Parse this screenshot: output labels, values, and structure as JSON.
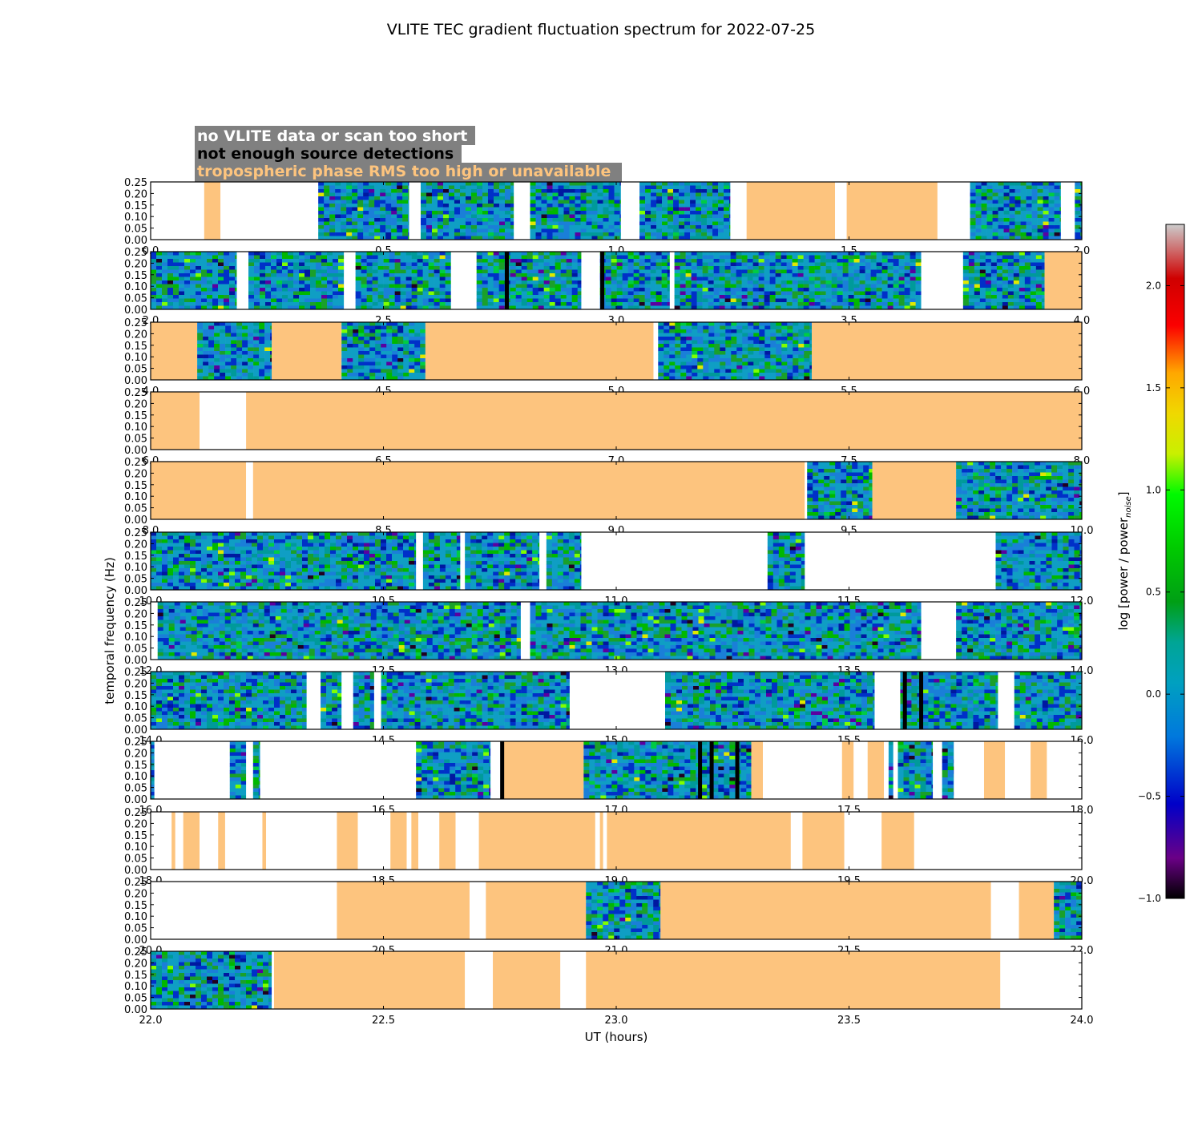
{
  "chart_data": {
    "type": "heatmap",
    "title": "VLITE TEC gradient fluctuation spectrum for 2022-07-25",
    "xlabel": "UT (hours)",
    "ylabel": "temporal frequency (Hz)",
    "colorbar": {
      "label": "log [power / power",
      "label_sub": "noise",
      "label_end": "]",
      "range": [
        -1.0,
        2.3
      ],
      "ticks": [
        "−1.0",
        "−0.5",
        "0.0",
        "0.5",
        "1.0",
        "1.5",
        "2.0"
      ],
      "tick_values": [
        -1.0,
        -0.5,
        0.0,
        0.5,
        1.0,
        1.5,
        2.0
      ],
      "colormap": "nipy_spectral"
    },
    "legend": {
      "placement": "top-left",
      "items": [
        {
          "label": "no VLITE data or scan too short",
          "text_color": "#ffffff",
          "fill": "#ffffff"
        },
        {
          "label": "not enough source detections",
          "text_color": "#000000",
          "fill": "#000000"
        },
        {
          "label": "tropospheric phase RMS too high or unavailable",
          "text_color": "#fdc47e",
          "fill": "#fdc47e"
        }
      ],
      "box_color": "#808080"
    },
    "y_ticks": [
      "0.00",
      "0.05",
      "0.10",
      "0.15",
      "0.20",
      "0.25"
    ],
    "y_tick_values": [
      0.0,
      0.05,
      0.1,
      0.15,
      0.2,
      0.25
    ],
    "ylim": [
      0,
      0.25
    ],
    "category_colors": {
      "none": "#ffffff",
      "detect": "#000000",
      "tropo": "#fdc47e"
    },
    "panels": [
      {
        "xlim": [
          0.0,
          2.0
        ],
        "x_ticks": [
          "0.0",
          "0.5",
          "1.0",
          "1.5",
          "2.0"
        ],
        "segments": [
          [
            "none",
            0.0,
            0.115
          ],
          [
            "tropo",
            0.115,
            0.15
          ],
          [
            "none",
            0.15,
            0.36
          ],
          [
            "data",
            0.36,
            0.555
          ],
          [
            "none",
            0.555,
            0.58
          ],
          [
            "data",
            0.58,
            0.78
          ],
          [
            "none",
            0.78,
            0.815
          ],
          [
            "data",
            0.815,
            1.01
          ],
          [
            "none",
            1.01,
            1.05
          ],
          [
            "data",
            1.05,
            1.245
          ],
          [
            "none",
            1.245,
            1.28
          ],
          [
            "tropo",
            1.28,
            1.47
          ],
          [
            "none",
            1.47,
            1.495
          ],
          [
            "tropo",
            1.495,
            1.69
          ],
          [
            "none",
            1.69,
            1.76
          ],
          [
            "data",
            1.76,
            1.955
          ],
          [
            "none",
            1.955,
            1.985
          ],
          [
            "data",
            1.985,
            2.0
          ]
        ]
      },
      {
        "xlim": [
          2.0,
          4.0
        ],
        "x_ticks": [
          "2.0",
          "2.5",
          "3.0",
          "3.5",
          "4.0"
        ],
        "segments": [
          [
            "data",
            2.0,
            2.185
          ],
          [
            "none",
            2.185,
            2.21
          ],
          [
            "data",
            2.21,
            2.415
          ],
          [
            "none",
            2.415,
            2.44
          ],
          [
            "data",
            2.44,
            2.645
          ],
          [
            "none",
            2.645,
            2.7
          ],
          [
            "data",
            2.7,
            2.925
          ],
          [
            "none",
            2.925,
            2.965
          ],
          [
            "data",
            2.965,
            3.115
          ],
          [
            "none",
            3.115,
            3.125
          ],
          [
            "data",
            3.125,
            3.655
          ],
          [
            "none",
            3.655,
            3.745
          ],
          [
            "data",
            3.745,
            3.92
          ],
          [
            "tropo",
            3.92,
            4.0
          ]
        ],
        "detect_lines": [
          2.765,
          2.97
        ]
      },
      {
        "xlim": [
          4.0,
          6.0
        ],
        "x_ticks": [
          "4.0",
          "4.5",
          "5.0",
          "5.5",
          "6.0"
        ],
        "segments": [
          [
            "tropo",
            4.0,
            4.1
          ],
          [
            "data",
            4.1,
            4.26
          ],
          [
            "tropo",
            4.26,
            4.41
          ],
          [
            "data",
            4.41,
            4.59
          ],
          [
            "tropo",
            4.59,
            5.08
          ],
          [
            "none",
            5.08,
            5.09
          ],
          [
            "data",
            5.09,
            5.42
          ],
          [
            "tropo",
            5.42,
            6.0
          ]
        ]
      },
      {
        "xlim": [
          6.0,
          8.0
        ],
        "x_ticks": [
          "6.0",
          "6.5",
          "7.0",
          "7.5",
          "8.0"
        ],
        "segments": [
          [
            "tropo",
            6.0,
            6.105
          ],
          [
            "none",
            6.105,
            6.205
          ],
          [
            "tropo",
            6.205,
            8.0
          ]
        ]
      },
      {
        "xlim": [
          8.0,
          10.0
        ],
        "x_ticks": [
          "8.0",
          "8.5",
          "9.0",
          "9.5",
          "10.0"
        ],
        "segments": [
          [
            "tropo",
            8.0,
            8.205
          ],
          [
            "none",
            8.205,
            8.22
          ],
          [
            "tropo",
            8.22,
            9.405
          ],
          [
            "none",
            9.405,
            9.41
          ],
          [
            "data",
            9.41,
            9.55
          ],
          [
            "tropo",
            9.55,
            9.73
          ],
          [
            "data",
            9.73,
            10.0
          ]
        ]
      },
      {
        "xlim": [
          10.0,
          12.0
        ],
        "x_ticks": [
          "10.0",
          "10.5",
          "11.0",
          "11.5",
          "12.0"
        ],
        "segments": [
          [
            "data",
            10.0,
            10.57
          ],
          [
            "none",
            10.57,
            10.585
          ],
          [
            "data",
            10.585,
            10.665
          ],
          [
            "none",
            10.665,
            10.675
          ],
          [
            "data",
            10.675,
            10.835
          ],
          [
            "none",
            10.835,
            10.85
          ],
          [
            "data",
            10.85,
            10.925
          ],
          [
            "none",
            10.925,
            11.325
          ],
          [
            "data",
            11.325,
            11.405
          ],
          [
            "none",
            11.405,
            11.815
          ],
          [
            "data",
            11.815,
            12.0
          ]
        ]
      },
      {
        "xlim": [
          12.0,
          14.0
        ],
        "x_ticks": [
          "12.0",
          "12.5",
          "13.0",
          "13.5",
          "14.0"
        ],
        "segments": [
          [
            "none",
            12.0,
            12.015
          ],
          [
            "data",
            12.015,
            12.795
          ],
          [
            "none",
            12.795,
            12.815
          ],
          [
            "data",
            12.815,
            13.655
          ],
          [
            "none",
            13.655,
            13.73
          ],
          [
            "data",
            13.73,
            14.0
          ]
        ]
      },
      {
        "xlim": [
          14.0,
          16.0
        ],
        "x_ticks": [
          "14.0",
          "14.5",
          "15.0",
          "15.5",
          "16.0"
        ],
        "segments": [
          [
            "data",
            14.0,
            14.335
          ],
          [
            "none",
            14.335,
            14.365
          ],
          [
            "data",
            14.365,
            14.41
          ],
          [
            "none",
            14.41,
            14.435
          ],
          [
            "data",
            14.435,
            14.48
          ],
          [
            "none",
            14.48,
            14.495
          ],
          [
            "data",
            14.495,
            14.9
          ],
          [
            "none",
            14.9,
            15.105
          ],
          [
            "data",
            15.105,
            15.555
          ],
          [
            "none",
            15.555,
            15.61
          ],
          [
            "data",
            15.61,
            15.82
          ],
          [
            "none",
            15.82,
            15.855
          ],
          [
            "data",
            15.855,
            16.0
          ]
        ],
        "detect_lines": [
          15.62,
          15.655
        ]
      },
      {
        "xlim": [
          16.0,
          18.0
        ],
        "x_ticks": [
          "16.0",
          "16.5",
          "17.0",
          "17.5",
          "18.0"
        ],
        "segments": [
          [
            "data",
            16.0,
            16.008
          ],
          [
            "none",
            16.008,
            16.17
          ],
          [
            "data",
            16.17,
            16.205
          ],
          [
            "none",
            16.205,
            16.22
          ],
          [
            "data",
            16.22,
            16.235
          ],
          [
            "none",
            16.235,
            16.57
          ],
          [
            "data",
            16.57,
            16.73
          ],
          [
            "none",
            16.73,
            16.755
          ],
          [
            "tropo",
            16.755,
            16.93
          ],
          [
            "data",
            16.93,
            17.29
          ],
          [
            "tropo",
            17.29,
            17.315
          ],
          [
            "none",
            17.315,
            17.485
          ],
          [
            "tropo",
            17.485,
            17.51
          ],
          [
            "none",
            17.51,
            17.54
          ],
          [
            "tropo",
            17.54,
            17.575
          ],
          [
            "none",
            17.575,
            17.585
          ],
          [
            "data",
            17.585,
            17.595
          ],
          [
            "none",
            17.595,
            17.605
          ],
          [
            "data",
            17.605,
            17.68
          ],
          [
            "none",
            17.68,
            17.7
          ],
          [
            "data",
            17.7,
            17.725
          ],
          [
            "none",
            17.725,
            17.79
          ],
          [
            "tropo",
            17.79,
            17.835
          ],
          [
            "none",
            17.835,
            17.89
          ],
          [
            "tropo",
            17.89,
            17.925
          ],
          [
            "none",
            17.925,
            18.0
          ]
        ],
        "detect_lines": [
          16.755,
          17.18,
          17.205,
          17.26
        ]
      },
      {
        "xlim": [
          18.0,
          20.0
        ],
        "x_ticks": [
          "18.0",
          "18.5",
          "19.0",
          "19.5",
          "20.0"
        ],
        "segments": [
          [
            "none",
            18.0,
            18.045
          ],
          [
            "tropo",
            18.045,
            18.053
          ],
          [
            "none",
            18.053,
            18.07
          ],
          [
            "tropo",
            18.07,
            18.105
          ],
          [
            "none",
            18.105,
            18.145
          ],
          [
            "tropo",
            18.145,
            18.16
          ],
          [
            "none",
            18.16,
            18.24
          ],
          [
            "tropo",
            18.24,
            18.248
          ],
          [
            "none",
            18.248,
            18.4
          ],
          [
            "tropo",
            18.4,
            18.445
          ],
          [
            "none",
            18.445,
            18.515
          ],
          [
            "tropo",
            18.515,
            18.55
          ],
          [
            "none",
            18.55,
            18.56
          ],
          [
            "tropo",
            18.56,
            18.575
          ],
          [
            "none",
            18.575,
            18.62
          ],
          [
            "tropo",
            18.62,
            18.655
          ],
          [
            "none",
            18.655,
            18.705
          ],
          [
            "tropo",
            18.705,
            18.955
          ],
          [
            "none",
            18.955,
            18.965
          ],
          [
            "tropo",
            18.965,
            18.972
          ],
          [
            "none",
            18.972,
            18.98
          ],
          [
            "tropo",
            18.98,
            19.375
          ],
          [
            "none",
            19.375,
            19.4
          ],
          [
            "tropo",
            19.4,
            19.49
          ],
          [
            "none",
            19.49,
            19.57
          ],
          [
            "tropo",
            19.57,
            19.64
          ],
          [
            "none",
            19.64,
            20.0
          ]
        ]
      },
      {
        "xlim": [
          20.0,
          22.0
        ],
        "x_ticks": [
          "20.0",
          "20.5",
          "21.0",
          "21.5",
          "22.0"
        ],
        "segments": [
          [
            "none",
            20.0,
            20.4
          ],
          [
            "tropo",
            20.4,
            20.685
          ],
          [
            "none",
            20.685,
            20.72
          ],
          [
            "tropo",
            20.72,
            20.935
          ],
          [
            "data",
            20.935,
            21.095
          ],
          [
            "tropo",
            21.095,
            21.805
          ],
          [
            "none",
            21.805,
            21.865
          ],
          [
            "tropo",
            21.865,
            21.94
          ],
          [
            "data",
            21.94,
            22.0
          ]
        ]
      },
      {
        "xlim": [
          22.0,
          24.0
        ],
        "x_ticks": [
          "22.0",
          "22.5",
          "23.0",
          "23.5",
          "24.0"
        ],
        "segments": [
          [
            "data",
            22.0,
            22.26
          ],
          [
            "none",
            22.26,
            22.265
          ],
          [
            "tropo",
            22.265,
            22.675
          ],
          [
            "none",
            22.675,
            22.735
          ],
          [
            "tropo",
            22.735,
            22.88
          ],
          [
            "none",
            22.88,
            22.935
          ],
          [
            "tropo",
            22.935,
            23.825
          ],
          [
            "none",
            23.825,
            24.0
          ]
        ]
      }
    ]
  }
}
